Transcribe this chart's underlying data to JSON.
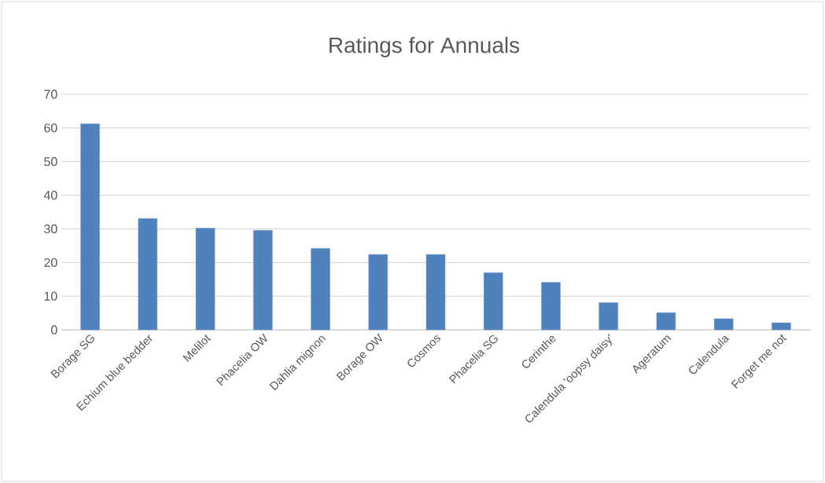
{
  "chart_data": {
    "type": "bar",
    "title": "Ratings for Annuals",
    "categories": [
      "Borage SG",
      "Echium blue bedder",
      "Melilot",
      "Phacelia OW",
      "Dahlia mignon",
      "Borage OW",
      "Cosmos",
      "Phacelia SG",
      "Cerinthe",
      "Calendula 'oopsy daisy'",
      "Ageratum",
      "Calendula",
      "Forget me not"
    ],
    "values": [
      61.2,
      33.1,
      30.2,
      29.6,
      24.2,
      22.4,
      22.4,
      17.0,
      14.1,
      8.1,
      5.1,
      3.3,
      2.1
    ],
    "color": "#4f81bd",
    "ylim": [
      0,
      70
    ],
    "yticks": [
      0,
      10,
      20,
      30,
      40,
      50,
      60,
      70
    ],
    "grid": "y"
  }
}
